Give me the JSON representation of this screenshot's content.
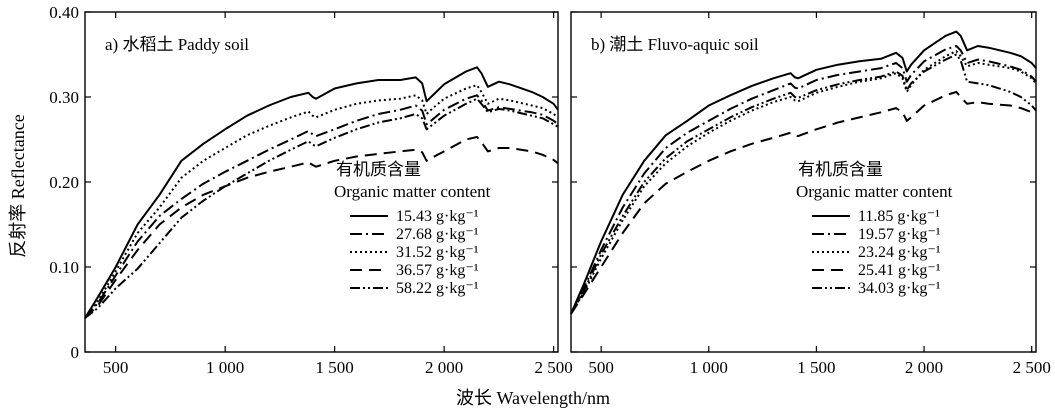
{
  "figure": {
    "ylabel": "反射率 Reflectance",
    "xlabel": "波长 Wavelength/nm"
  },
  "chart_data": [
    {
      "type": "line",
      "title": "a) 水稻土 Paddy soil",
      "xlim": [
        360,
        2520
      ],
      "ylim": [
        0,
        0.4
      ],
      "xticks": [
        500,
        1000,
        1500,
        2000,
        2500
      ],
      "xtick_labels": [
        "500",
        "1 000",
        "1 500",
        "2 000",
        "2 500"
      ],
      "yticks": [
        0,
        0.1,
        0.2,
        0.3,
        0.4
      ],
      "ytick_labels": [
        "0",
        "0.10",
        "0.20",
        "0.30",
        "0.40"
      ],
      "grid": false,
      "legend_title_cn": "有机质含量",
      "legend_title_en": "Organic matter content",
      "legend_position": "right",
      "series": [
        {
          "name": "15.43 g·kg⁻¹",
          "dash": "solid",
          "x": [
            360,
            420,
            500,
            600,
            700,
            800,
            900,
            1000,
            1100,
            1200,
            1300,
            1380,
            1400,
            1415,
            1500,
            1600,
            1700,
            1800,
            1870,
            1900,
            1920,
            1940,
            2000,
            2100,
            2150,
            2170,
            2200,
            2250,
            2300,
            2400,
            2450,
            2500,
            2520
          ],
          "y": [
            0.04,
            0.065,
            0.1,
            0.15,
            0.185,
            0.225,
            0.245,
            0.262,
            0.278,
            0.29,
            0.3,
            0.305,
            0.3,
            0.298,
            0.31,
            0.316,
            0.32,
            0.32,
            0.323,
            0.316,
            0.295,
            0.3,
            0.315,
            0.33,
            0.335,
            0.328,
            0.312,
            0.318,
            0.315,
            0.306,
            0.3,
            0.292,
            0.285
          ]
        },
        {
          "name": "27.68 g·kg⁻¹",
          "dash": "dashdot",
          "x": [
            360,
            420,
            500,
            600,
            700,
            800,
            900,
            1000,
            1100,
            1200,
            1300,
            1380,
            1400,
            1415,
            1500,
            1600,
            1700,
            1800,
            1870,
            1900,
            1920,
            1940,
            2000,
            2100,
            2150,
            2170,
            2200,
            2250,
            2300,
            2400,
            2450,
            2500,
            2520
          ],
          "y": [
            0.04,
            0.058,
            0.09,
            0.13,
            0.16,
            0.18,
            0.198,
            0.212,
            0.225,
            0.238,
            0.25,
            0.26,
            0.256,
            0.254,
            0.262,
            0.272,
            0.28,
            0.285,
            0.29,
            0.284,
            0.268,
            0.272,
            0.285,
            0.298,
            0.302,
            0.296,
            0.284,
            0.288,
            0.286,
            0.282,
            0.279,
            0.272,
            0.268
          ]
        },
        {
          "name": "31.52 g·kg⁻¹",
          "dash": "dotted",
          "x": [
            360,
            420,
            500,
            600,
            700,
            800,
            900,
            1000,
            1100,
            1200,
            1300,
            1380,
            1400,
            1415,
            1500,
            1600,
            1700,
            1800,
            1870,
            1900,
            1920,
            1940,
            2000,
            2100,
            2150,
            2170,
            2200,
            2250,
            2300,
            2400,
            2450,
            2500,
            2520
          ],
          "y": [
            0.04,
            0.06,
            0.095,
            0.14,
            0.17,
            0.205,
            0.225,
            0.24,
            0.255,
            0.266,
            0.276,
            0.283,
            0.278,
            0.276,
            0.285,
            0.292,
            0.296,
            0.298,
            0.302,
            0.296,
            0.28,
            0.285,
            0.298,
            0.31,
            0.314,
            0.306,
            0.292,
            0.298,
            0.296,
            0.29,
            0.287,
            0.28,
            0.276
          ]
        },
        {
          "name": "36.57 g·kg⁻¹",
          "dash": "dashed",
          "x": [
            360,
            420,
            500,
            600,
            700,
            800,
            900,
            1000,
            1100,
            1200,
            1300,
            1380,
            1400,
            1415,
            1500,
            1600,
            1700,
            1800,
            1870,
            1900,
            1920,
            1940,
            2000,
            2100,
            2150,
            2170,
            2200,
            2250,
            2300,
            2400,
            2450,
            2500,
            2520
          ],
          "y": [
            0.04,
            0.055,
            0.085,
            0.12,
            0.15,
            0.17,
            0.185,
            0.195,
            0.205,
            0.212,
            0.218,
            0.223,
            0.22,
            0.218,
            0.225,
            0.23,
            0.233,
            0.236,
            0.238,
            0.235,
            0.225,
            0.228,
            0.236,
            0.25,
            0.253,
            0.247,
            0.236,
            0.24,
            0.24,
            0.236,
            0.232,
            0.226,
            0.222
          ]
        },
        {
          "name": "58.22 g·kg⁻¹",
          "dash": "dashdotdot",
          "x": [
            360,
            420,
            500,
            600,
            700,
            800,
            900,
            1000,
            1100,
            1200,
            1300,
            1380,
            1400,
            1415,
            1500,
            1600,
            1700,
            1800,
            1870,
            1900,
            1920,
            1940,
            2000,
            2100,
            2150,
            2170,
            2200,
            2250,
            2300,
            2400,
            2450,
            2500,
            2520
          ],
          "y": [
            0.04,
            0.052,
            0.075,
            0.098,
            0.128,
            0.158,
            0.178,
            0.195,
            0.21,
            0.225,
            0.238,
            0.248,
            0.244,
            0.242,
            0.252,
            0.262,
            0.27,
            0.275,
            0.28,
            0.275,
            0.262,
            0.266,
            0.278,
            0.292,
            0.298,
            0.292,
            0.282,
            0.286,
            0.284,
            0.278,
            0.275,
            0.268,
            0.265
          ]
        }
      ]
    },
    {
      "type": "line",
      "title": "b) 潮土 Fluvo-aquic soil",
      "xlim": [
        360,
        2520
      ],
      "ylim": [
        0,
        0.4
      ],
      "xticks": [
        500,
        1000,
        1500,
        2000,
        2500
      ],
      "xtick_labels": [
        "500",
        "1 000",
        "1 500",
        "2 000",
        "2 500"
      ],
      "yticks": [
        0,
        0.1,
        0.2,
        0.3,
        0.4
      ],
      "grid": false,
      "legend_title_cn": "有机质含量",
      "legend_title_en": "Organic matter content",
      "legend_position": "right",
      "series": [
        {
          "name": "11.85 g·kg⁻¹",
          "dash": "solid",
          "x": [
            360,
            420,
            500,
            600,
            700,
            800,
            900,
            1000,
            1100,
            1200,
            1300,
            1380,
            1400,
            1415,
            1500,
            1600,
            1700,
            1800,
            1870,
            1900,
            1920,
            1940,
            2000,
            2100,
            2150,
            2170,
            2200,
            2250,
            2300,
            2400,
            2450,
            2500,
            2520
          ],
          "y": [
            0.045,
            0.08,
            0.13,
            0.185,
            0.225,
            0.255,
            0.272,
            0.29,
            0.302,
            0.313,
            0.322,
            0.328,
            0.323,
            0.322,
            0.332,
            0.338,
            0.342,
            0.345,
            0.352,
            0.346,
            0.33,
            0.338,
            0.355,
            0.372,
            0.377,
            0.372,
            0.355,
            0.36,
            0.358,
            0.352,
            0.348,
            0.34,
            0.334
          ]
        },
        {
          "name": "19.57 g·kg⁻¹",
          "dash": "dashdot",
          "x": [
            360,
            420,
            500,
            600,
            700,
            800,
            900,
            1000,
            1100,
            1200,
            1300,
            1380,
            1400,
            1415,
            1500,
            1600,
            1700,
            1800,
            1870,
            1900,
            1920,
            1940,
            2000,
            2100,
            2150,
            2170,
            2200,
            2250,
            2300,
            2400,
            2450,
            2500,
            2520
          ],
          "y": [
            0.045,
            0.075,
            0.12,
            0.17,
            0.21,
            0.24,
            0.258,
            0.272,
            0.286,
            0.298,
            0.308,
            0.316,
            0.311,
            0.31,
            0.32,
            0.326,
            0.33,
            0.334,
            0.34,
            0.334,
            0.318,
            0.326,
            0.342,
            0.356,
            0.36,
            0.355,
            0.34,
            0.344,
            0.342,
            0.336,
            0.332,
            0.324,
            0.318
          ]
        },
        {
          "name": "23.24 g·kg⁻¹",
          "dash": "dotted",
          "x": [
            360,
            420,
            500,
            600,
            700,
            800,
            900,
            1000,
            1100,
            1200,
            1300,
            1380,
            1400,
            1415,
            1500,
            1600,
            1700,
            1800,
            1870,
            1900,
            1920,
            1940,
            2000,
            2100,
            2150,
            2170,
            2200,
            2250,
            2300,
            2400,
            2450,
            2500,
            2520
          ],
          "y": [
            0.045,
            0.07,
            0.11,
            0.155,
            0.195,
            0.222,
            0.242,
            0.258,
            0.272,
            0.284,
            0.294,
            0.3,
            0.296,
            0.295,
            0.305,
            0.312,
            0.318,
            0.322,
            0.328,
            0.322,
            0.306,
            0.314,
            0.332,
            0.348,
            0.354,
            0.348,
            0.336,
            0.34,
            0.338,
            0.334,
            0.33,
            0.322,
            0.316
          ]
        },
        {
          "name": "25.41 g·kg⁻¹",
          "dash": "dashed",
          "x": [
            360,
            420,
            500,
            600,
            700,
            800,
            900,
            1000,
            1100,
            1200,
            1300,
            1380,
            1400,
            1415,
            1500,
            1600,
            1700,
            1800,
            1870,
            1900,
            1920,
            1940,
            2000,
            2100,
            2150,
            2170,
            2200,
            2250,
            2300,
            2400,
            2450,
            2500,
            2520
          ],
          "y": [
            0.045,
            0.068,
            0.1,
            0.14,
            0.175,
            0.198,
            0.212,
            0.225,
            0.236,
            0.245,
            0.252,
            0.258,
            0.255,
            0.254,
            0.262,
            0.27,
            0.276,
            0.282,
            0.287,
            0.282,
            0.272,
            0.276,
            0.29,
            0.302,
            0.306,
            0.3,
            0.292,
            0.294,
            0.292,
            0.29,
            0.287,
            0.282,
            0.278
          ]
        },
        {
          "name": "34.03 g·kg⁻¹",
          "dash": "dashdotdot",
          "x": [
            360,
            420,
            500,
            600,
            700,
            800,
            900,
            1000,
            1100,
            1200,
            1300,
            1380,
            1400,
            1415,
            1500,
            1600,
            1700,
            1800,
            1870,
            1900,
            1920,
            1940,
            2000,
            2100,
            2150,
            2170,
            2200,
            2250,
            2300,
            2400,
            2450,
            2500,
            2520
          ],
          "y": [
            0.045,
            0.072,
            0.115,
            0.16,
            0.2,
            0.228,
            0.248,
            0.262,
            0.276,
            0.288,
            0.298,
            0.305,
            0.3,
            0.299,
            0.308,
            0.315,
            0.32,
            0.324,
            0.33,
            0.325,
            0.308,
            0.316,
            0.33,
            0.344,
            0.35,
            0.343,
            0.318,
            0.316,
            0.314,
            0.306,
            0.3,
            0.29,
            0.284
          ]
        }
      ]
    }
  ]
}
